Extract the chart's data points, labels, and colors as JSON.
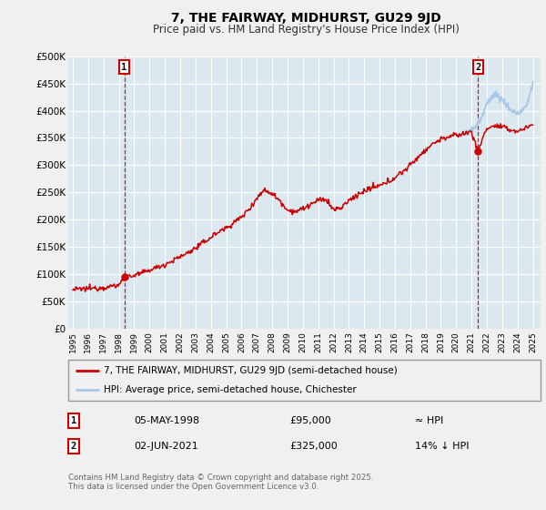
{
  "title": "7, THE FAIRWAY, MIDHURST, GU29 9JD",
  "subtitle": "Price paid vs. HM Land Registry's House Price Index (HPI)",
  "bg_color": "#f0f0f0",
  "plot_bg_color": "#dce8f0",
  "grid_color": "#ffffff",
  "hpi_color": "#a8c8e8",
  "price_color": "#cc0000",
  "dashed_color": "#cc0000",
  "marker1_date_x": 1998.35,
  "marker2_date_x": 2021.42,
  "marker1_price": 95000,
  "marker2_price": 325000,
  "legend_label_price": "7, THE FAIRWAY, MIDHURST, GU29 9JD (semi-detached house)",
  "legend_label_hpi": "HPI: Average price, semi-detached house, Chichester",
  "annotation1_date": "05-MAY-1998",
  "annotation1_price": "£95,000",
  "annotation1_hpi": "≈ HPI",
  "annotation2_date": "02-JUN-2021",
  "annotation2_price": "£325,000",
  "annotation2_hpi": "14% ↓ HPI",
  "footer": "Contains HM Land Registry data © Crown copyright and database right 2025.\nThis data is licensed under the Open Government Licence v3.0.",
  "ylim": [
    0,
    500000
  ],
  "yticks": [
    0,
    50000,
    100000,
    150000,
    200000,
    250000,
    300000,
    350000,
    400000,
    450000,
    500000
  ],
  "ytick_labels": [
    "£0",
    "£50K",
    "£100K",
    "£150K",
    "£200K",
    "£250K",
    "£300K",
    "£350K",
    "£400K",
    "£450K",
    "£500K"
  ],
  "xlim": [
    1994.7,
    2025.5
  ],
  "xticks": [
    1995,
    1996,
    1997,
    1998,
    1999,
    2000,
    2001,
    2002,
    2003,
    2004,
    2005,
    2006,
    2007,
    2008,
    2009,
    2010,
    2011,
    2012,
    2013,
    2014,
    2015,
    2016,
    2017,
    2018,
    2019,
    2020,
    2021,
    2022,
    2023,
    2024,
    2025
  ]
}
